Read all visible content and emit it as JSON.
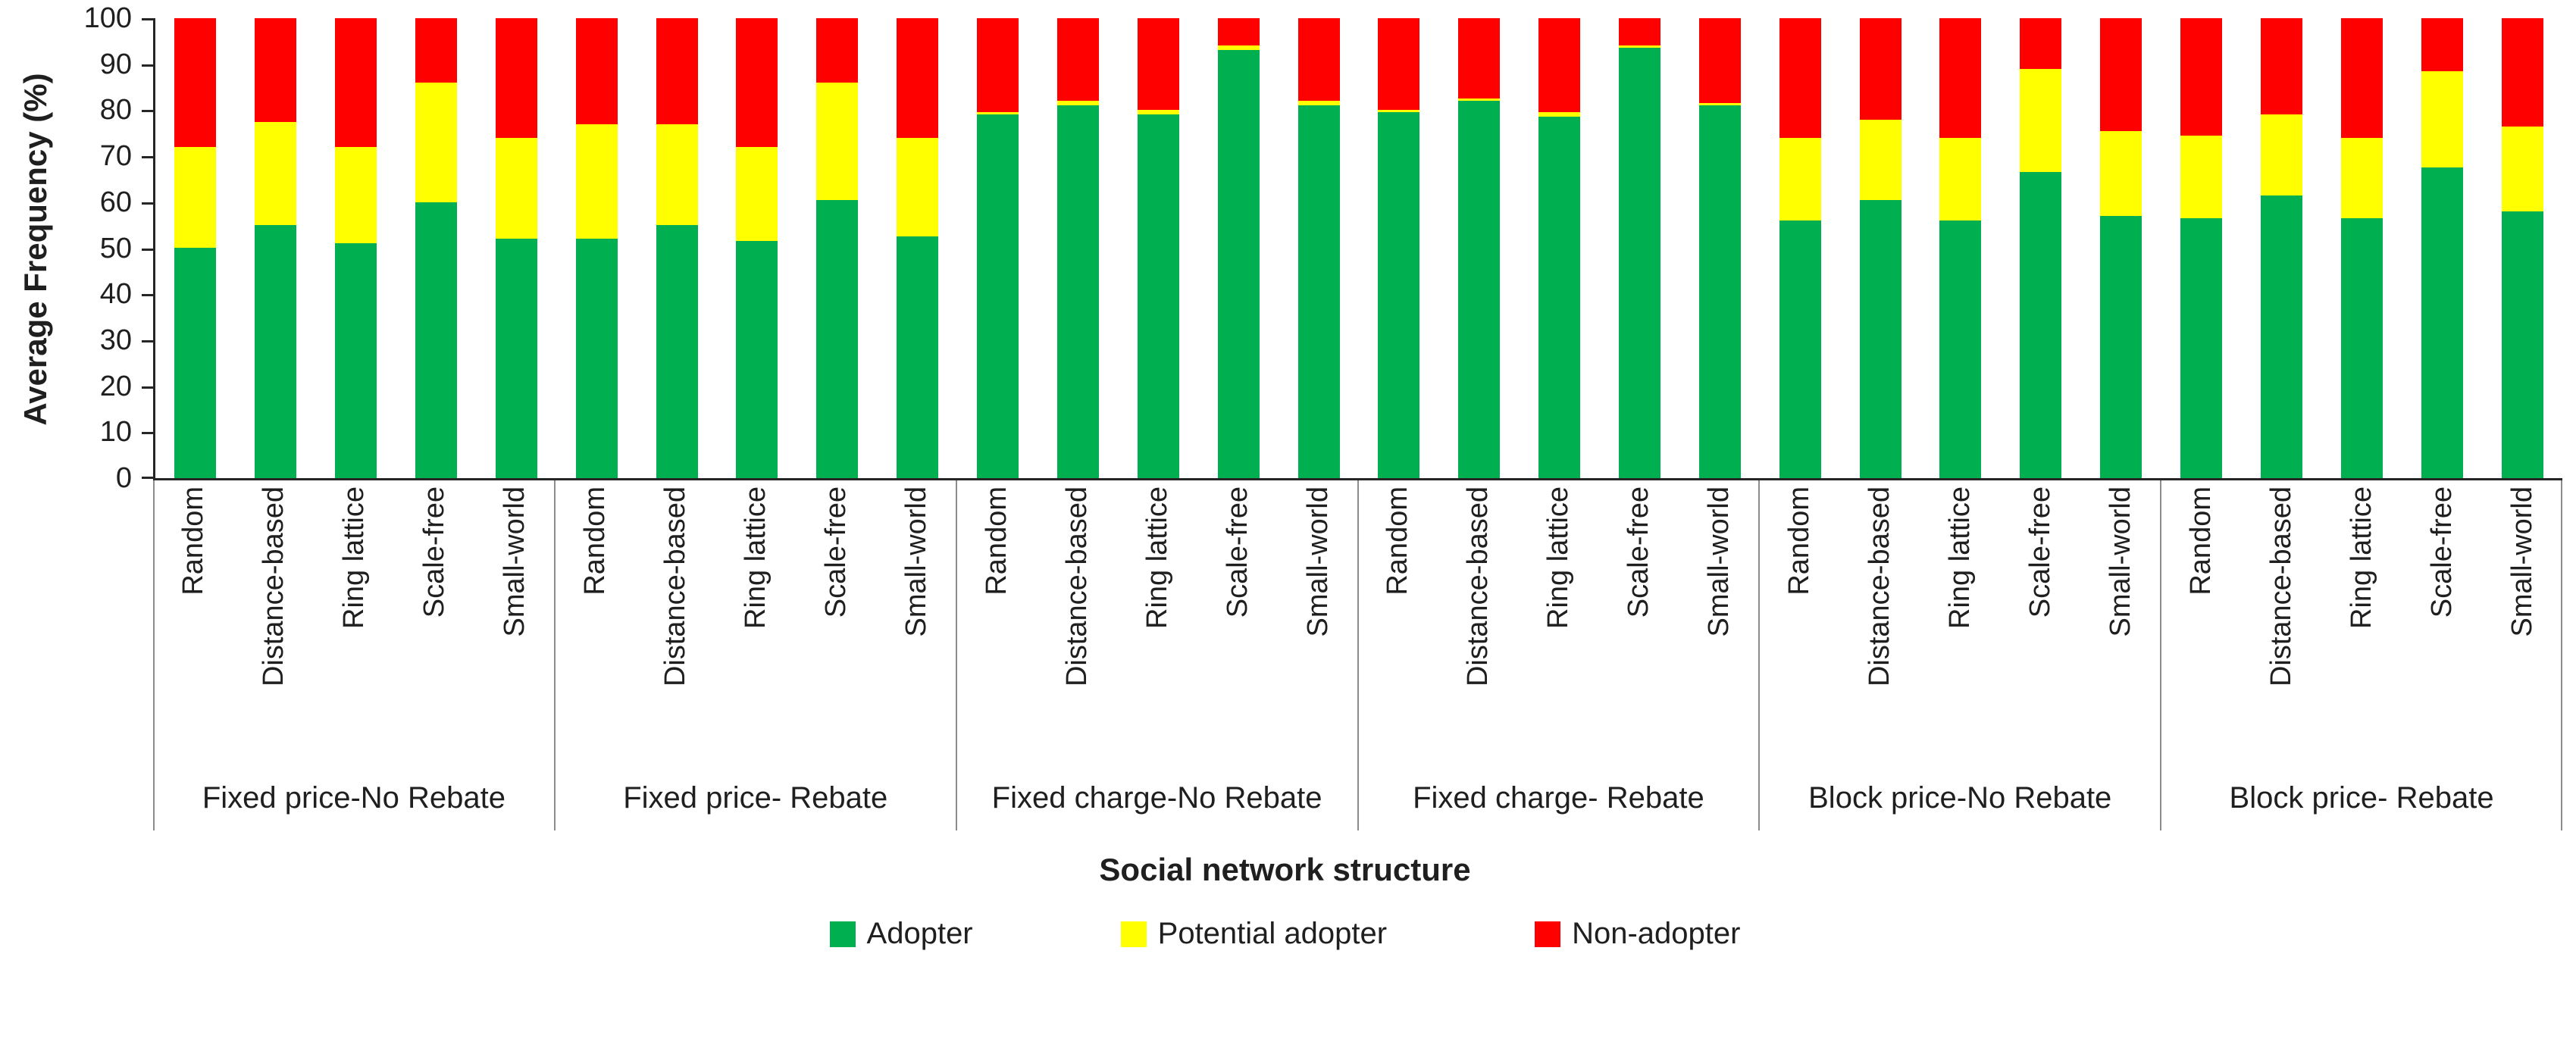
{
  "chart_data": {
    "type": "bar",
    "stacked": true,
    "stacked_total": 100,
    "title": "",
    "ylabel": "Average Frequency (%)",
    "xlabel": "Social network structure",
    "ylim": [
      0,
      100
    ],
    "yticks": [
      0,
      10,
      20,
      30,
      40,
      50,
      60,
      70,
      80,
      90,
      100
    ],
    "grid": false,
    "legend_position": "bottom",
    "groups": [
      "Fixed price-No Rebate",
      "Fixed price- Rebate",
      "Fixed charge-No Rebate",
      "Fixed charge- Rebate",
      "Block price-No Rebate",
      "Block price- Rebate"
    ],
    "categories": [
      "Random",
      "Distance-based",
      "Ring lattice",
      "Scale-free",
      "Small-world"
    ],
    "series": [
      {
        "name": "Adopter",
        "color": "#00B050",
        "values": [
          [
            50,
            55,
            51,
            60,
            52
          ],
          [
            52,
            55,
            51.5,
            60.5,
            52.5
          ],
          [
            79,
            81,
            79,
            93,
            81
          ],
          [
            79.5,
            82,
            78.5,
            93.5,
            81
          ],
          [
            56,
            60.5,
            56,
            66.5,
            57
          ],
          [
            56.5,
            61.5,
            56.5,
            67.5,
            58
          ]
        ]
      },
      {
        "name": "Potential adopter",
        "color": "#FFFF00",
        "values": [
          [
            22,
            22.5,
            21,
            26,
            22
          ],
          [
            25,
            22,
            20.5,
            25.5,
            21.5
          ],
          [
            0.5,
            1,
            1,
            1,
            1
          ],
          [
            0.5,
            0.5,
            1,
            0.5,
            0.5
          ],
          [
            18,
            17.5,
            18,
            22.5,
            18.5
          ],
          [
            18,
            17.5,
            17.5,
            21,
            18.5
          ]
        ]
      },
      {
        "name": "Non-adopter",
        "color": "#FF0000",
        "values": [
          [
            28,
            22.5,
            28,
            14,
            26
          ],
          [
            23,
            23,
            28,
            14,
            26
          ],
          [
            20.5,
            18,
            20,
            6,
            18
          ],
          [
            20,
            17.5,
            20.5,
            6,
            18.5
          ],
          [
            26,
            22,
            26,
            11,
            24.5
          ],
          [
            25.5,
            21,
            26,
            11.5,
            23.5
          ]
        ]
      }
    ]
  }
}
